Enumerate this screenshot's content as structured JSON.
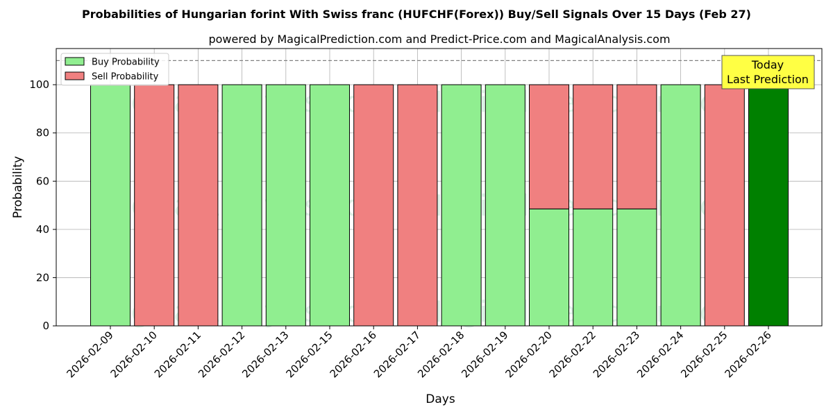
{
  "chart_data": {
    "type": "bar",
    "title": "Probabilities of Hungarian forint With Swiss franc (HUFCHF(Forex)) Buy/Sell Signals Over 15 Days (Feb 27)",
    "subtitle": "powered by MagicalPrediction.com and Predict-Price.com and MagicalAnalysis.com",
    "xlabel": "Days",
    "ylabel": "Probability",
    "ylim": [
      0,
      115
    ],
    "yticks": [
      0,
      20,
      40,
      60,
      80,
      100
    ],
    "grid": true,
    "stacked": true,
    "reference_line": 110,
    "categories": [
      "2026-02-09",
      "2026-02-10",
      "2026-02-11",
      "2026-02-12",
      "2026-02-13",
      "2026-02-15",
      "2026-02-16",
      "2026-02-17",
      "2026-02-18",
      "2026-02-19",
      "2026-02-20",
      "2026-02-22",
      "2026-02-23",
      "2026-02-24",
      "2026-02-25",
      "2026-02-26"
    ],
    "series": [
      {
        "name": "Buy Probability",
        "color": "#90ee90",
        "values": [
          100,
          0,
          0,
          100,
          100,
          100,
          0,
          0,
          100,
          100,
          48.5,
          48.5,
          48.5,
          100,
          0,
          100
        ]
      },
      {
        "name": "Sell Probability",
        "color": "#f08080",
        "values": [
          0,
          100,
          100,
          0,
          0,
          0,
          100,
          100,
          0,
          0,
          51.5,
          51.5,
          51.5,
          0,
          100,
          0
        ]
      }
    ],
    "highlight": {
      "index": 15,
      "color": "#008000"
    },
    "legend_position": "top-left",
    "annotation": {
      "line1": "Today",
      "line2": "Last Prediction",
      "background": "#ffff44"
    },
    "watermarks": [
      "MagicalAnalysis.com",
      "MagicalPrediction.com"
    ]
  }
}
